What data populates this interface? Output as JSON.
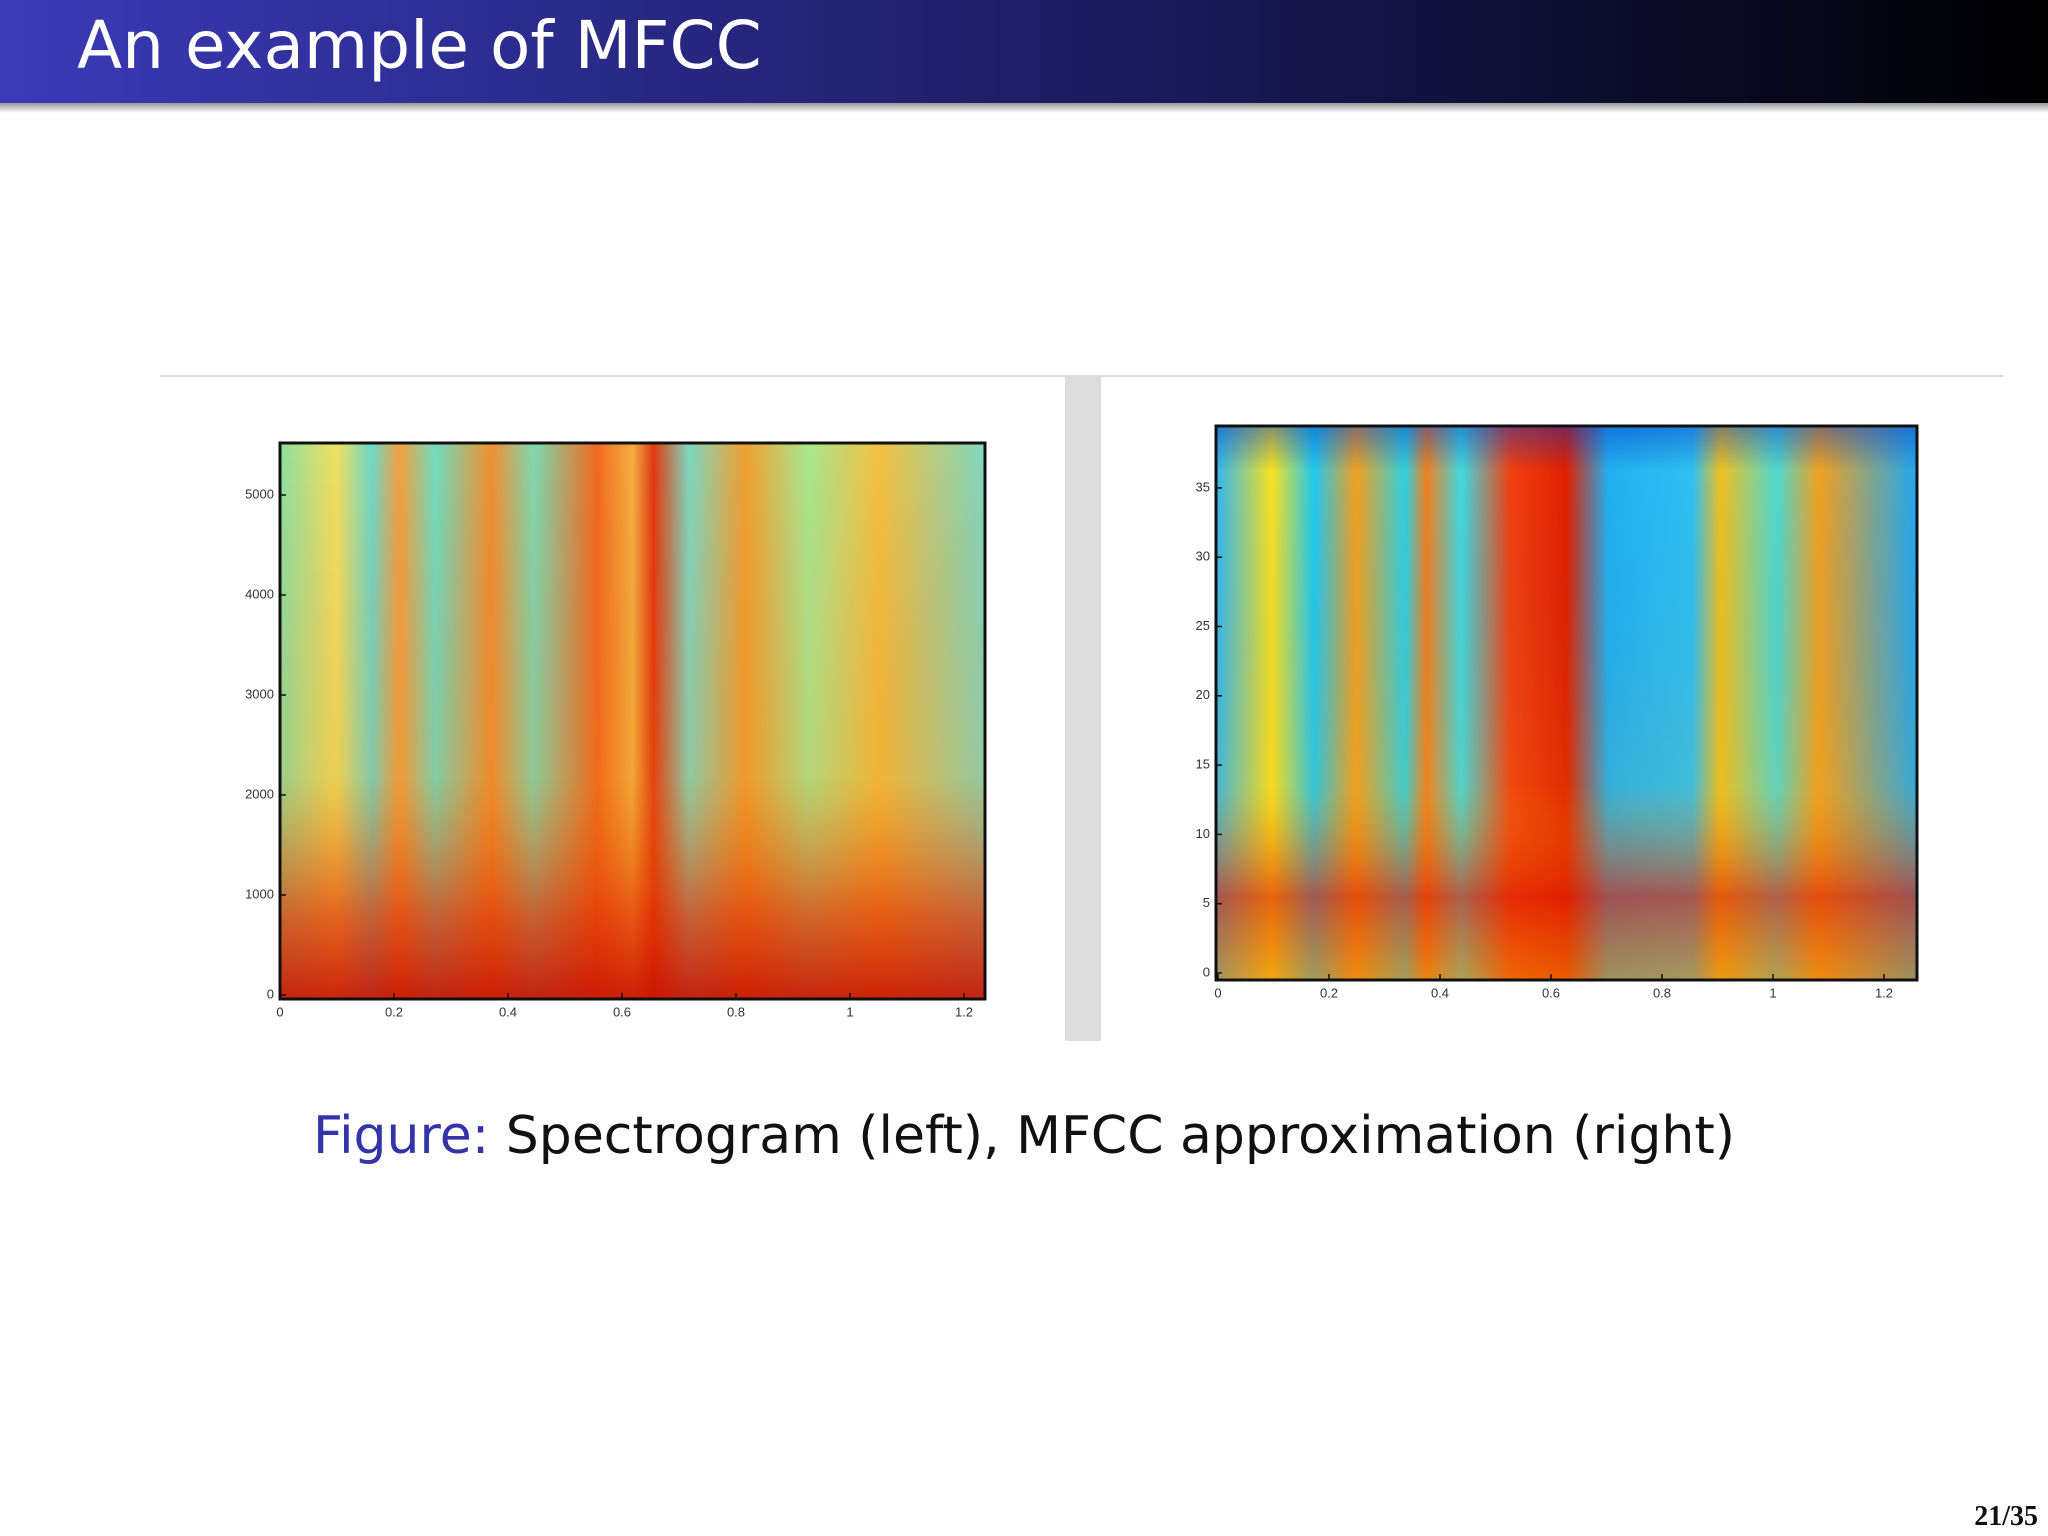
{
  "header": {
    "title": "An example of MFCC"
  },
  "figure": {
    "left": {
      "x_ticks": [
        "0",
        "0.2",
        "0.4",
        "0.6",
        "0.8",
        "1",
        "1.2"
      ],
      "y_ticks": [
        "0",
        "1000",
        "2000",
        "3000",
        "4000",
        "5000"
      ]
    },
    "right": {
      "x_ticks": [
        "0",
        "0.2",
        "0.4",
        "0.6",
        "0.8",
        "1",
        "1.2"
      ],
      "y_ticks": [
        "0",
        "5",
        "10",
        "15",
        "20",
        "25",
        "30",
        "35"
      ]
    }
  },
  "caption": {
    "label": "Figure:",
    "text": "Spectrogram (left), MFCC approximation (right)"
  },
  "footer": {
    "page": "21/35"
  }
}
